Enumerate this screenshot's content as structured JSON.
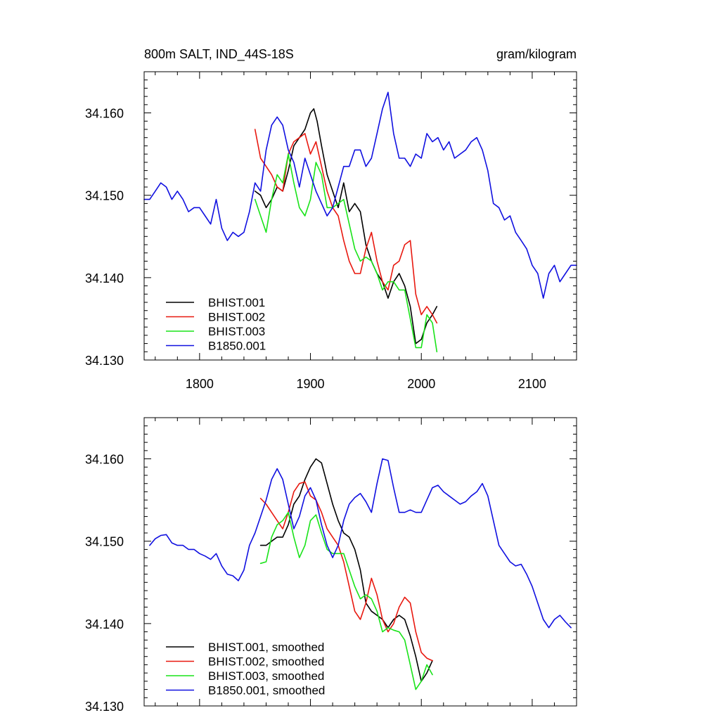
{
  "chart_data": [
    {
      "type": "line",
      "title": "800m SALT, IND_44S-18S",
      "title_right": "gram/kilogram",
      "xlim": [
        1750,
        2140
      ],
      "ylim": [
        34.13,
        34.165
      ],
      "xticks": [
        1800,
        1900,
        2000,
        2100
      ],
      "xtick_labels": [
        "1800",
        "1900",
        "2000",
        "2100"
      ],
      "yticks": [
        34.13,
        34.14,
        34.15,
        34.16
      ],
      "ytick_labels": [
        "34.130",
        "34.140",
        "34.150",
        "34.160"
      ],
      "legend_position": "bottom-left",
      "series": [
        {
          "name": "BHIST.001",
          "color": "#000000",
          "x": [
            1850,
            1855,
            1860,
            1865,
            1870,
            1875,
            1880,
            1885,
            1890,
            1895,
            1900,
            1903,
            1906,
            1910,
            1915,
            1920,
            1925,
            1930,
            1935,
            1940,
            1945,
            1950,
            1955,
            1960,
            1965,
            1970,
            1975,
            1980,
            1985,
            1990,
            1995,
            2000,
            2005,
            2010,
            2014
          ],
          "y": [
            34.1505,
            34.15,
            34.1485,
            34.1495,
            34.151,
            34.1505,
            34.153,
            34.156,
            34.157,
            34.158,
            34.16,
            34.1605,
            34.159,
            34.156,
            34.1525,
            34.1505,
            34.1485,
            34.1515,
            34.148,
            34.149,
            34.148,
            34.144,
            34.142,
            34.1405,
            34.1395,
            34.1375,
            34.1395,
            34.1405,
            34.139,
            34.1365,
            34.132,
            34.1325,
            34.1345,
            34.1355,
            34.1365
          ]
        },
        {
          "name": "BHIST.002",
          "color": "#e8180f",
          "x": [
            1850,
            1855,
            1860,
            1865,
            1870,
            1875,
            1880,
            1885,
            1890,
            1895,
            1900,
            1905,
            1910,
            1915,
            1920,
            1925,
            1930,
            1935,
            1940,
            1945,
            1950,
            1955,
            1960,
            1965,
            1970,
            1975,
            1980,
            1985,
            1990,
            1995,
            2000,
            2005,
            2010,
            2014
          ],
          "y": [
            34.158,
            34.1545,
            34.1535,
            34.1525,
            34.151,
            34.1505,
            34.155,
            34.1565,
            34.157,
            34.1575,
            34.155,
            34.1565,
            34.1535,
            34.1505,
            34.1485,
            34.1475,
            34.1445,
            34.142,
            34.1405,
            34.1405,
            34.1435,
            34.1455,
            34.142,
            34.1395,
            34.1385,
            34.1415,
            34.142,
            34.144,
            34.1445,
            34.138,
            34.1355,
            34.1365,
            34.1355,
            34.1345
          ]
        },
        {
          "name": "BHIST.003",
          "color": "#19e319",
          "x": [
            1850,
            1855,
            1860,
            1865,
            1870,
            1875,
            1880,
            1885,
            1890,
            1895,
            1900,
            1905,
            1910,
            1915,
            1920,
            1925,
            1930,
            1935,
            1940,
            1945,
            1950,
            1955,
            1960,
            1965,
            1970,
            1975,
            1980,
            1985,
            1990,
            1995,
            2000,
            2005,
            2010,
            2014
          ],
          "y": [
            34.1495,
            34.1475,
            34.1455,
            34.1495,
            34.1525,
            34.1515,
            34.155,
            34.1515,
            34.1485,
            34.1475,
            34.1495,
            34.154,
            34.1525,
            34.1485,
            34.1485,
            34.149,
            34.1495,
            34.1465,
            34.1435,
            34.142,
            34.1425,
            34.142,
            34.1405,
            34.1385,
            34.1395,
            34.1395,
            34.1385,
            34.1385,
            34.135,
            34.1315,
            34.1315,
            34.1355,
            34.1345,
            34.131
          ]
        },
        {
          "name": "B1850.001",
          "color": "#1010e0",
          "x": [
            1750,
            1755,
            1760,
            1765,
            1770,
            1775,
            1780,
            1785,
            1790,
            1795,
            1800,
            1805,
            1810,
            1815,
            1820,
            1825,
            1830,
            1835,
            1840,
            1845,
            1850,
            1855,
            1860,
            1865,
            1870,
            1875,
            1880,
            1885,
            1890,
            1895,
            1900,
            1905,
            1910,
            1915,
            1920,
            1925,
            1930,
            1935,
            1940,
            1945,
            1950,
            1955,
            1960,
            1965,
            1970,
            1975,
            1980,
            1985,
            1990,
            1995,
            2000,
            2005,
            2010,
            2015,
            2020,
            2025,
            2030,
            2035,
            2040,
            2045,
            2050,
            2055,
            2060,
            2065,
            2070,
            2075,
            2080,
            2085,
            2090,
            2095,
            2100,
            2105,
            2110,
            2115,
            2120,
            2125,
            2130,
            2135,
            2140
          ],
          "y": [
            34.1495,
            34.1495,
            34.1505,
            34.1515,
            34.151,
            34.1495,
            34.1505,
            34.1495,
            34.148,
            34.1485,
            34.1485,
            34.1475,
            34.1465,
            34.1495,
            34.146,
            34.1445,
            34.1455,
            34.145,
            34.1455,
            34.148,
            34.1515,
            34.1505,
            34.1555,
            34.1585,
            34.1595,
            34.1585,
            34.1555,
            34.154,
            34.151,
            34.1545,
            34.1525,
            34.1505,
            34.149,
            34.1475,
            34.1485,
            34.151,
            34.1535,
            34.1535,
            34.1555,
            34.1555,
            34.1535,
            34.1545,
            34.1575,
            34.1605,
            34.1625,
            34.1575,
            34.1545,
            34.1545,
            34.1535,
            34.155,
            34.1545,
            34.1575,
            34.1565,
            34.157,
            34.1555,
            34.1565,
            34.1545,
            34.155,
            34.1555,
            34.1565,
            34.157,
            34.1555,
            34.153,
            34.149,
            34.1485,
            34.147,
            34.1475,
            34.1455,
            34.1445,
            34.1435,
            34.1415,
            34.1405,
            34.1375,
            34.1405,
            34.1415,
            34.1395,
            34.1405,
            34.1415,
            34.1415
          ]
        }
      ]
    },
    {
      "type": "line",
      "title": "",
      "title_right": "",
      "xlim": [
        1750,
        2140
      ],
      "ylim": [
        34.13,
        34.165
      ],
      "xticks": [
        1800,
        1900,
        2000,
        2100
      ],
      "xtick_labels": [],
      "yticks": [
        34.13,
        34.14,
        34.15,
        34.16
      ],
      "ytick_labels": [
        "34.130",
        "34.140",
        "34.150",
        "34.160"
      ],
      "legend_position": "bottom-left",
      "series": [
        {
          "name": "BHIST.001, smoothed",
          "color": "#000000",
          "x": [
            1855,
            1860,
            1865,
            1870,
            1875,
            1880,
            1885,
            1890,
            1895,
            1900,
            1905,
            1910,
            1915,
            1920,
            1925,
            1930,
            1935,
            1940,
            1945,
            1950,
            1955,
            1960,
            1965,
            1970,
            1975,
            1980,
            1985,
            1990,
            1995,
            2000,
            2005,
            2010
          ],
          "y": [
            34.1495,
            34.1495,
            34.15,
            34.1505,
            34.1505,
            34.152,
            34.1545,
            34.1555,
            34.1575,
            34.159,
            34.16,
            34.1595,
            34.157,
            34.1545,
            34.1525,
            34.151,
            34.1505,
            34.149,
            34.1465,
            34.1425,
            34.1415,
            34.141,
            34.1405,
            34.1395,
            34.1405,
            34.141,
            34.1405,
            34.1385,
            34.136,
            34.133,
            34.134,
            34.1355
          ]
        },
        {
          "name": "BHIST.002, smoothed",
          "color": "#e8180f",
          "x": [
            1855,
            1860,
            1865,
            1870,
            1875,
            1880,
            1885,
            1890,
            1895,
            1900,
            1905,
            1910,
            1915,
            1920,
            1925,
            1930,
            1935,
            1940,
            1945,
            1950,
            1955,
            1960,
            1965,
            1970,
            1975,
            1980,
            1985,
            1990,
            1995,
            2000,
            2005,
            2010
          ],
          "y": [
            34.1552,
            34.1545,
            34.1535,
            34.1525,
            34.1515,
            34.1535,
            34.156,
            34.157,
            34.1572,
            34.1555,
            34.155,
            34.1535,
            34.1515,
            34.1505,
            34.1495,
            34.1475,
            34.1445,
            34.1415,
            34.1405,
            34.1425,
            34.1455,
            34.1435,
            34.1405,
            34.139,
            34.14,
            34.142,
            34.1432,
            34.1425,
            34.139,
            34.1365,
            34.1358,
            34.1355
          ]
        },
        {
          "name": "BHIST.003, smoothed",
          "color": "#19e319",
          "x": [
            1855,
            1860,
            1865,
            1870,
            1875,
            1880,
            1885,
            1890,
            1895,
            1900,
            1905,
            1910,
            1915,
            1920,
            1925,
            1930,
            1935,
            1940,
            1945,
            1950,
            1955,
            1960,
            1965,
            1970,
            1975,
            1980,
            1985,
            1990,
            1995,
            2000,
            2005,
            2010
          ],
          "y": [
            34.1473,
            34.1475,
            34.1505,
            34.152,
            34.1525,
            34.1535,
            34.1505,
            34.148,
            34.1495,
            34.1525,
            34.1532,
            34.151,
            34.149,
            34.1485,
            34.1485,
            34.1485,
            34.1465,
            34.1445,
            34.143,
            34.1435,
            34.143,
            34.1415,
            34.139,
            34.1395,
            34.1392,
            34.139,
            34.138,
            34.135,
            34.132,
            34.133,
            34.135,
            34.1338
          ]
        },
        {
          "name": "B1850.001, smoothed",
          "color": "#1010e0",
          "x": [
            1755,
            1760,
            1765,
            1770,
            1775,
            1780,
            1785,
            1790,
            1795,
            1800,
            1805,
            1810,
            1815,
            1820,
            1825,
            1830,
            1835,
            1840,
            1845,
            1850,
            1855,
            1860,
            1865,
            1870,
            1875,
            1880,
            1885,
            1890,
            1895,
            1900,
            1905,
            1910,
            1915,
            1920,
            1925,
            1930,
            1935,
            1940,
            1945,
            1950,
            1955,
            1960,
            1965,
            1970,
            1975,
            1980,
            1985,
            1990,
            1995,
            2000,
            2005,
            2010,
            2015,
            2020,
            2025,
            2030,
            2035,
            2040,
            2045,
            2050,
            2055,
            2060,
            2065,
            2070,
            2075,
            2080,
            2085,
            2090,
            2095,
            2100,
            2105,
            2110,
            2115,
            2120,
            2125,
            2130,
            2135
          ],
          "y": [
            34.1495,
            34.1503,
            34.1507,
            34.1508,
            34.1498,
            34.1495,
            34.1495,
            34.149,
            34.149,
            34.1485,
            34.1482,
            34.1478,
            34.1485,
            34.147,
            34.146,
            34.1458,
            34.1452,
            34.1465,
            34.1495,
            34.151,
            34.153,
            34.155,
            34.1575,
            34.1588,
            34.1575,
            34.1545,
            34.1515,
            34.153,
            34.1555,
            34.1565,
            34.155,
            34.152,
            34.1495,
            34.148,
            34.1495,
            34.1525,
            34.1545,
            34.1553,
            34.1558,
            34.1548,
            34.1535,
            34.157,
            34.16,
            34.1598,
            34.1565,
            34.1535,
            34.1535,
            34.1538,
            34.1535,
            34.1535,
            34.155,
            34.1565,
            34.1568,
            34.156,
            34.1555,
            34.155,
            34.1545,
            34.1548,
            34.1555,
            34.156,
            34.157,
            34.1555,
            34.1525,
            34.1495,
            34.1485,
            34.1475,
            34.147,
            34.1472,
            34.146,
            34.1445,
            34.1425,
            34.1405,
            34.1395,
            34.1405,
            34.141,
            34.1402,
            34.1395
          ]
        }
      ]
    }
  ]
}
